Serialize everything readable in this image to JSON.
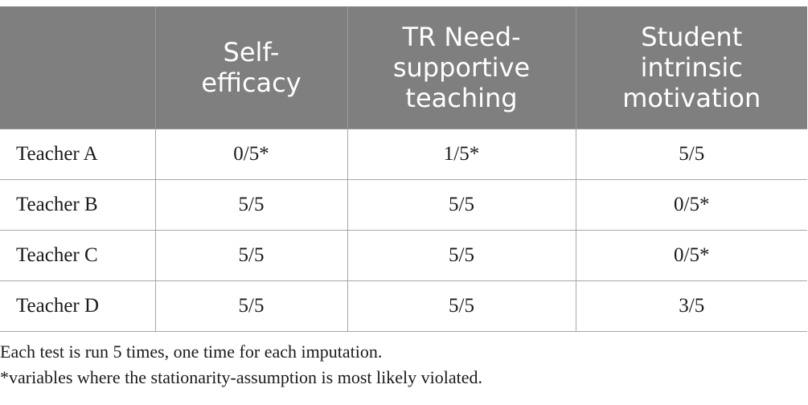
{
  "table": {
    "headers": [
      "",
      "Self-\nefficacy",
      "TR Need-\nsupportive\nteaching",
      "Student\nintrinsic\nmotivation"
    ],
    "header_lines": [
      [],
      [
        "Self-",
        "efficacy"
      ],
      [
        "TR Need-",
        "supportive",
        "teaching"
      ],
      [
        "Student",
        "intrinsic",
        "motivation"
      ]
    ],
    "rows": [
      {
        "label": "Teacher A",
        "cells": [
          "0/5*",
          "1/5*",
          "5/5"
        ]
      },
      {
        "label": "Teacher B",
        "cells": [
          "5/5",
          "5/5",
          "0/5*"
        ]
      },
      {
        "label": "Teacher C",
        "cells": [
          "5/5",
          "5/5",
          "0/5*"
        ]
      },
      {
        "label": "Teacher D",
        "cells": [
          "5/5",
          "5/5",
          "3/5"
        ]
      }
    ],
    "colors": {
      "header_bg": "#7f7f7f",
      "header_text": "#ffffff",
      "body_text": "#1a1a1a",
      "grid": "#a6a6a6"
    }
  },
  "notes": [
    "Each test is run 5 times, one time for each imputation.",
    "*variables where the stationarity-assumption is most likely violated."
  ]
}
